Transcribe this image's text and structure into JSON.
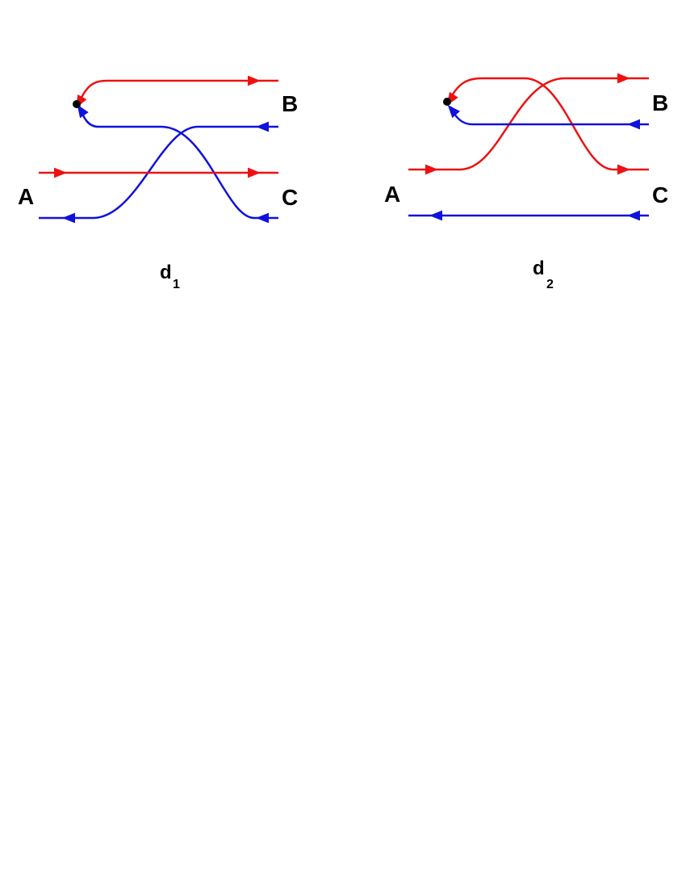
{
  "colors": {
    "red": "#ee1111",
    "blue": "#1111dd",
    "dot": "#000000"
  },
  "diagrams": [
    {
      "id": "d1",
      "name": "d",
      "subscript": "1",
      "label_left": "A",
      "label_top_right": "B",
      "label_bottom_right": "C"
    },
    {
      "id": "d2",
      "name": "d",
      "subscript": "2",
      "label_left": "A",
      "label_top_right": "B",
      "label_bottom_right": "C"
    }
  ]
}
